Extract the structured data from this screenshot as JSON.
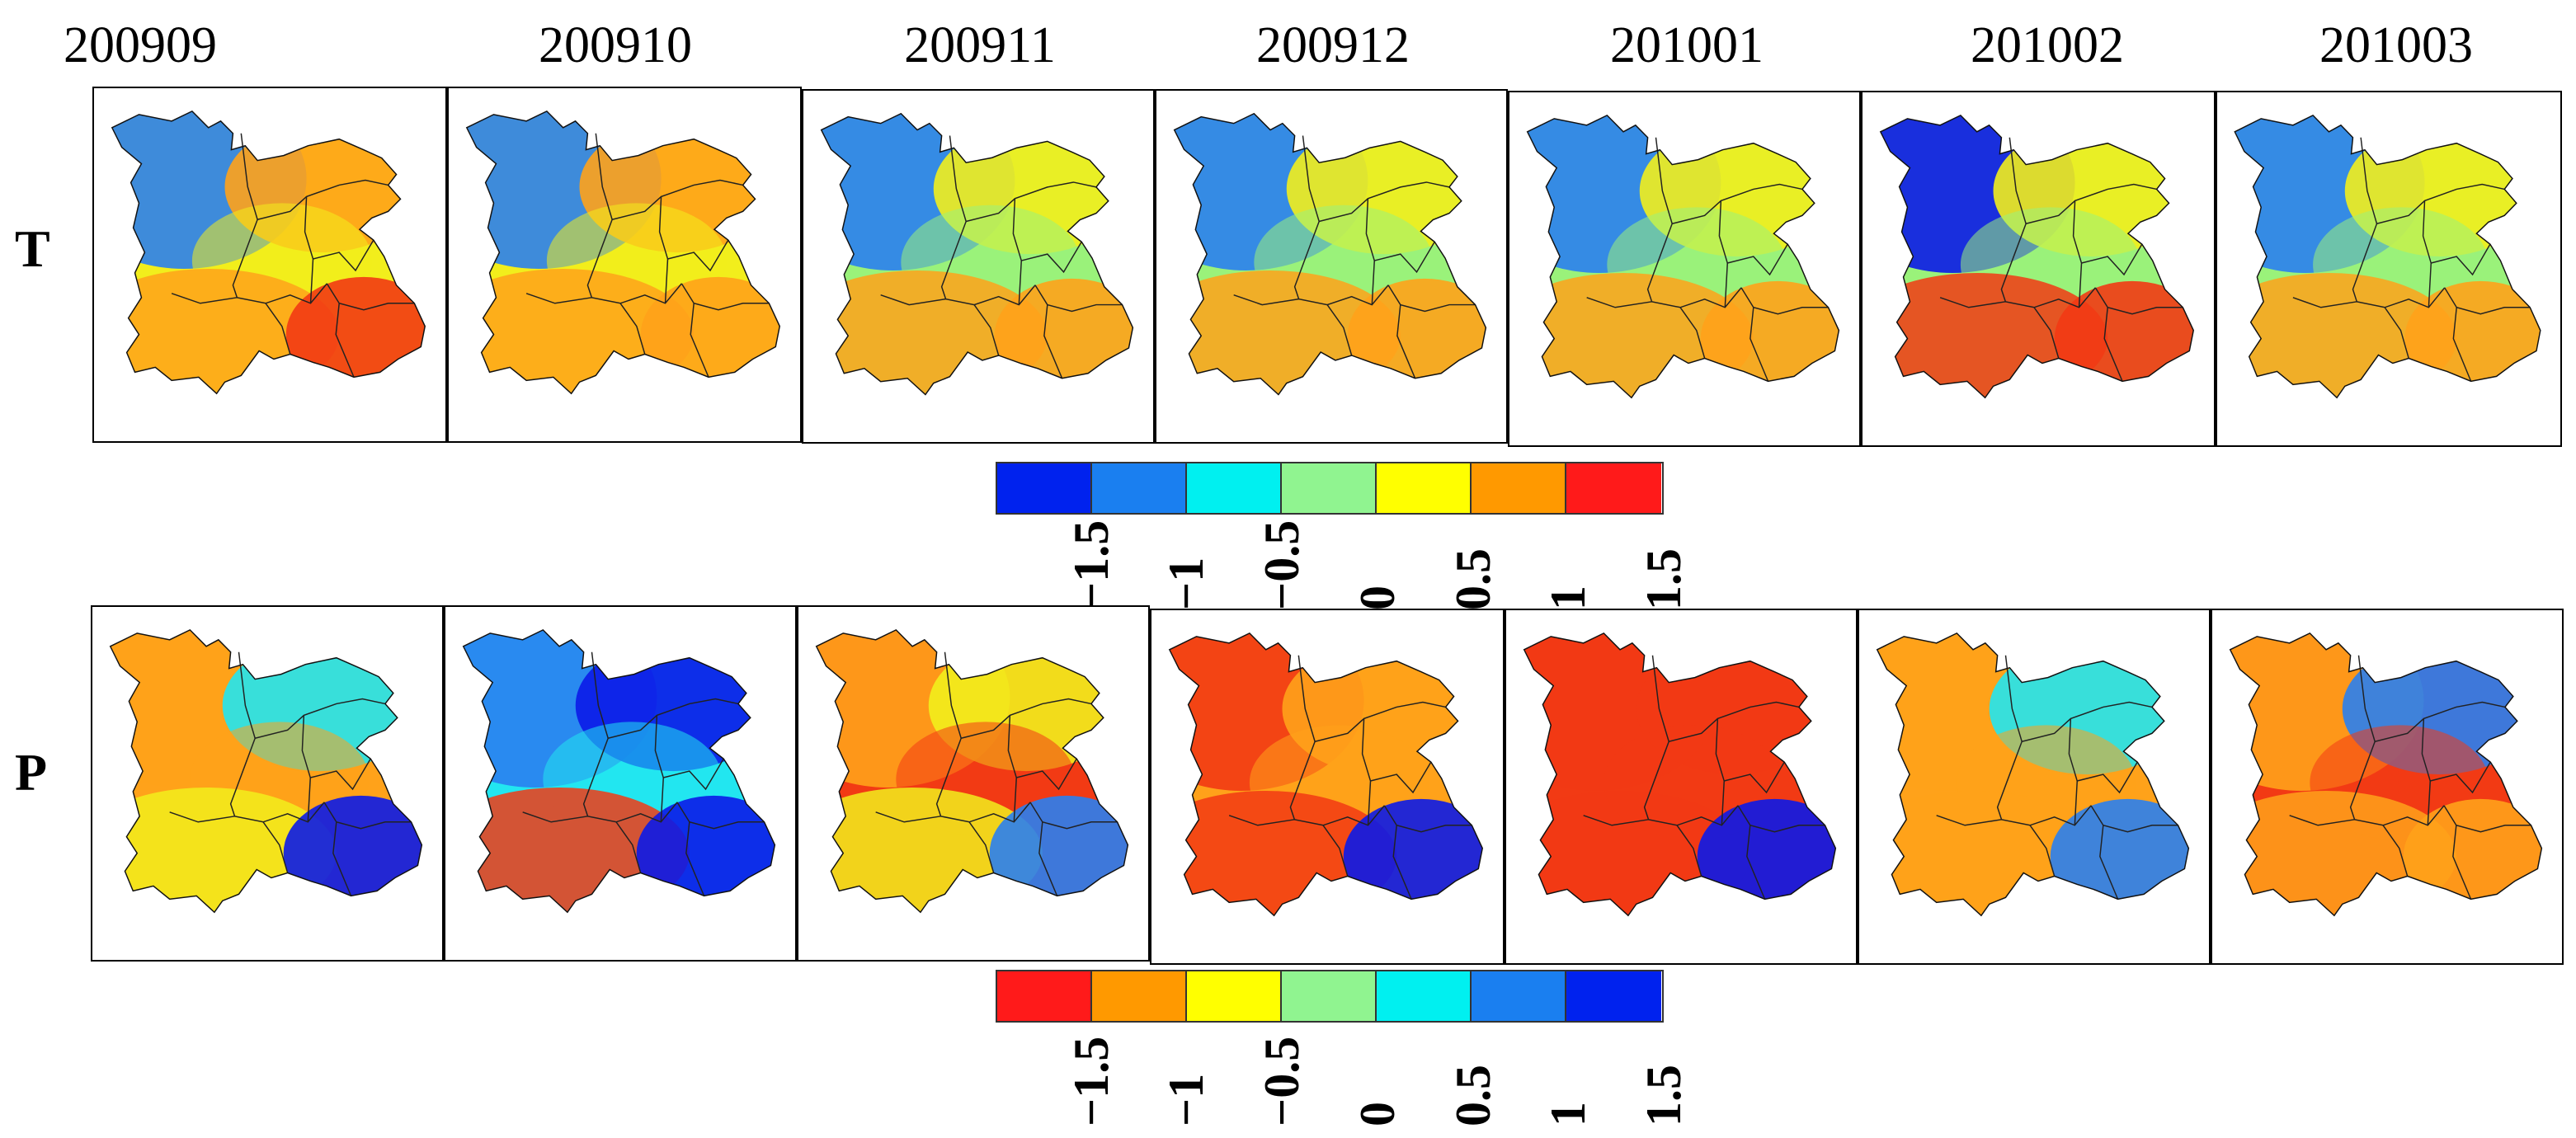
{
  "columns": [
    "200909",
    "200910",
    "200911",
    "200912",
    "201001",
    "201002",
    "201003"
  ],
  "rows": [
    {
      "label": "T",
      "maps": [
        {
          "n": "w",
          "ne": "o",
          "c": "y",
          "s": "o",
          "se": "r"
        },
        {
          "n": "w",
          "ne": "o",
          "c": "y",
          "s": "o",
          "se": "o"
        },
        {
          "n": "w",
          "ne": "y",
          "c": "g",
          "s": "o",
          "se": "o"
        },
        {
          "n": "w",
          "ne": "y",
          "c": "g",
          "s": "o",
          "se": "o"
        },
        {
          "n": "w",
          "ne": "y",
          "c": "g",
          "s": "o",
          "se": "o"
        },
        {
          "n": "b",
          "ne": "y",
          "c": "g",
          "s": "r",
          "se": "r"
        },
        {
          "n": "w",
          "ne": "y",
          "c": "g",
          "s": "o",
          "se": "o"
        }
      ]
    },
    {
      "label": "P",
      "maps": [
        {
          "n": "o",
          "ne": "c",
          "c": "o",
          "s": "y",
          "se": "b"
        },
        {
          "n": "w",
          "ne": "b",
          "c": "c",
          "s": "r",
          "se": "b"
        },
        {
          "n": "o",
          "ne": "y",
          "c": "r",
          "s": "y",
          "se": "w"
        },
        {
          "n": "r",
          "ne": "o",
          "c": "o",
          "s": "r",
          "se": "b"
        },
        {
          "n": "r",
          "ne": "r",
          "c": "r",
          "s": "r",
          "se": "b"
        },
        {
          "n": "o",
          "ne": "c",
          "c": "o",
          "s": "o",
          "se": "w"
        },
        {
          "n": "o",
          "ne": "w",
          "c": "r",
          "s": "o",
          "se": "o"
        }
      ]
    }
  ],
  "legends": [
    {
      "colors": [
        "#0022ee",
        "#1a7ff0",
        "#00f0f0",
        "#90f490",
        "#ffff00",
        "#ff9900",
        "#ff1a1a"
      ],
      "ticks": [
        "−1.5",
        "−1",
        "−0.5",
        "0",
        "0.5",
        "1",
        "1.5"
      ]
    },
    {
      "colors": [
        "#ff1a1a",
        "#ff9900",
        "#ffff00",
        "#90f490",
        "#00f0f0",
        "#1a7ff0",
        "#0022ee"
      ],
      "ticks": [
        "−1.5",
        "−1",
        "−0.5",
        "0",
        "0.5",
        "1",
        "1.5"
      ]
    }
  ],
  "palette": {
    "b": "#0b1ae8",
    "w": "#2a7ff0",
    "c": "#22e6f0",
    "g": "#9af27a",
    "y": "#f2ee1c",
    "o": "#ffa21a",
    "r": "#f23a14"
  }
}
